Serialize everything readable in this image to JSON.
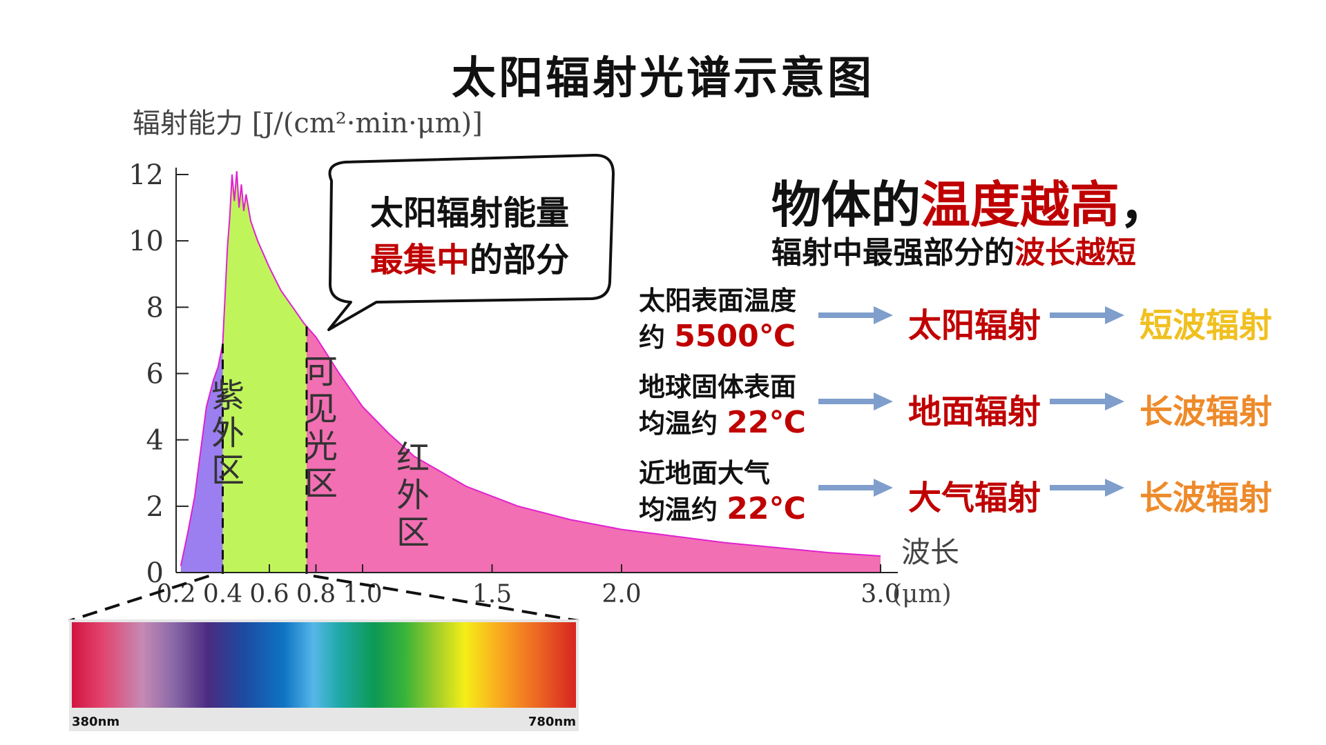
{
  "title": "太阳辐射光谱示意图",
  "chart_data": {
    "type": "area",
    "title": "太阳辐射光谱示意图",
    "ylabel": "辐射能力 [J/(cm²·min·μm)]",
    "xlabel": "波长",
    "x_unit": "(μm)",
    "ylim": [
      0,
      12
    ],
    "xlim": [
      0.2,
      3.0
    ],
    "y_ticks": [
      "0",
      "2",
      "4",
      "6",
      "8",
      "10",
      "12"
    ],
    "x_ticks": [
      "0.2",
      "0.4",
      "0.6",
      "0.8",
      "1.0",
      "1.5",
      "2.0",
      "3.0"
    ],
    "x": [
      0.22,
      0.25,
      0.28,
      0.3,
      0.33,
      0.36,
      0.38,
      0.4,
      0.42,
      0.43,
      0.44,
      0.45,
      0.46,
      0.47,
      0.48,
      0.49,
      0.5,
      0.52,
      0.55,
      0.6,
      0.65,
      0.7,
      0.75,
      0.8,
      0.9,
      1.0,
      1.1,
      1.2,
      1.4,
      1.6,
      1.8,
      2.0,
      2.2,
      2.4,
      2.6,
      2.8,
      3.0
    ],
    "y": [
      0.2,
      1.2,
      2.3,
      3.4,
      5.0,
      5.8,
      6.2,
      6.9,
      9.8,
      10.7,
      12.0,
      11.2,
      12.1,
      11.0,
      11.7,
      10.9,
      11.4,
      10.6,
      10.0,
      9.2,
      8.5,
      8.0,
      7.5,
      7.1,
      6.0,
      5.0,
      4.2,
      3.5,
      2.6,
      2.0,
      1.6,
      1.3,
      1.1,
      0.9,
      0.75,
      0.6,
      0.5
    ],
    "regions": [
      {
        "label": "紫外区",
        "from": 0.22,
        "to": 0.4,
        "color": "#9b7ff0"
      },
      {
        "label": "可见光区",
        "from": 0.4,
        "to": 0.76,
        "color": "#bff55a"
      },
      {
        "label": "红外区",
        "from": 0.76,
        "to": 3.0,
        "color": "#f26fb3"
      }
    ],
    "line_color": "#e020d0",
    "grid": false
  },
  "callout": {
    "line1": "太阳辐射能量",
    "line2_red": "最集中",
    "line2_rest": "的部分"
  },
  "claim": {
    "line1_black": "物体的",
    "line1_red": "温度越高",
    "line1_comma": "，",
    "line2_black": "辐射中最强部分的",
    "line2_red": "波长越短"
  },
  "rows": [
    {
      "desc1": "太阳表面温度",
      "desc2_prefix": "约 ",
      "temp": "5500℃",
      "mid": "太阳辐射",
      "out": "短波辐射",
      "out_color": "#f0c020"
    },
    {
      "desc1": "地球固体表面",
      "desc2_prefix": "均温约 ",
      "temp": "22℃",
      "mid": "地面辐射",
      "out": "长波辐射",
      "out_color": "#ee8a2a"
    },
    {
      "desc1": "近地面大气",
      "desc2_prefix": "均温约 ",
      "temp": "22℃",
      "mid": "大气辐射",
      "out": "长波辐射",
      "out_color": "#ee8a2a"
    }
  ],
  "arrow_color": "#7f9ecb",
  "spectrum": {
    "left_label": "380nm",
    "right_label": "780nm"
  }
}
